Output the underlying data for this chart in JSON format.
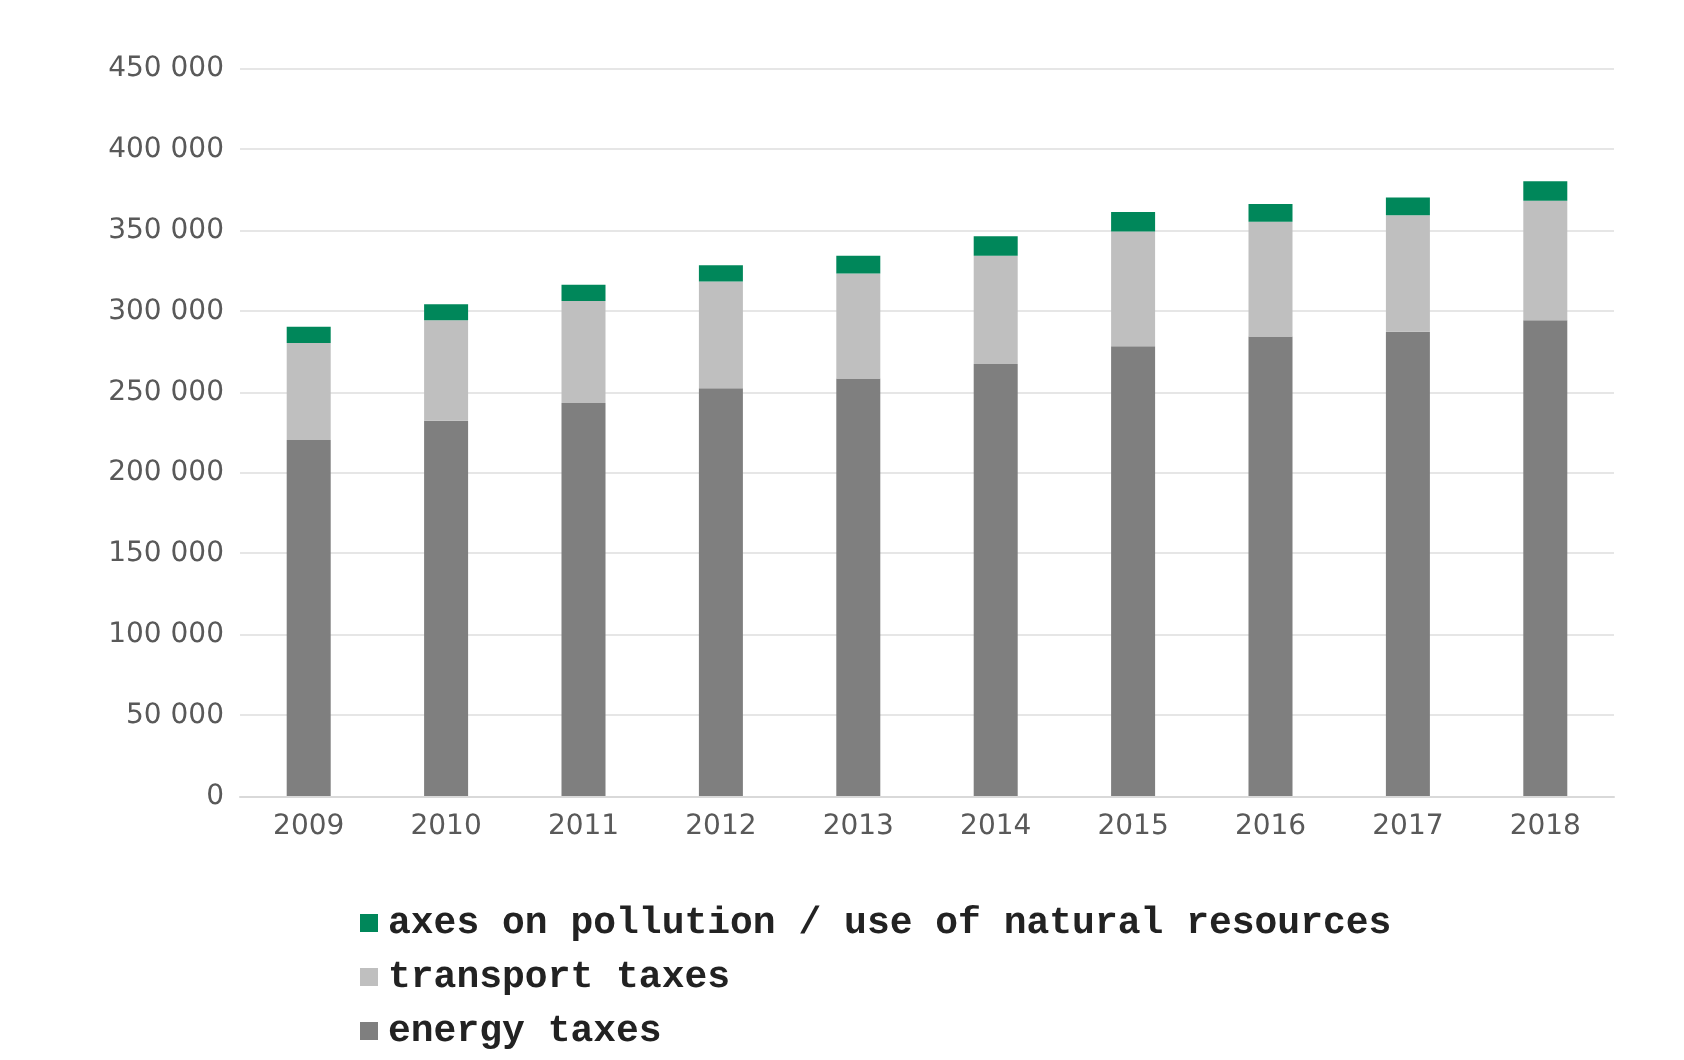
{
  "chart_data": {
    "type": "bar",
    "stacked": true,
    "categories": [
      "2009",
      "2010",
      "2011",
      "2012",
      "2013",
      "2014",
      "2015",
      "2016",
      "2017",
      "2018"
    ],
    "series": [
      {
        "name": "energy taxes",
        "color": "#7f7f7f",
        "values": [
          220000,
          232000,
          243000,
          252000,
          258000,
          267000,
          278000,
          284000,
          287000,
          294000
        ]
      },
      {
        "name": "transport taxes",
        "color": "#bfbfbf",
        "values": [
          60000,
          62000,
          63000,
          66000,
          65000,
          67000,
          71000,
          71000,
          72000,
          74000
        ]
      },
      {
        "name": "axes on pollution / use of natural resources",
        "color": "#00875a",
        "values": [
          10000,
          10000,
          10000,
          10000,
          11000,
          12000,
          12000,
          11000,
          11000,
          12000
        ]
      }
    ],
    "ylim": [
      0,
      450000
    ],
    "yticks": [
      0,
      50000,
      100000,
      150000,
      200000,
      250000,
      300000,
      350000,
      400000,
      450000
    ],
    "grid": "y",
    "legend": "bottom"
  }
}
